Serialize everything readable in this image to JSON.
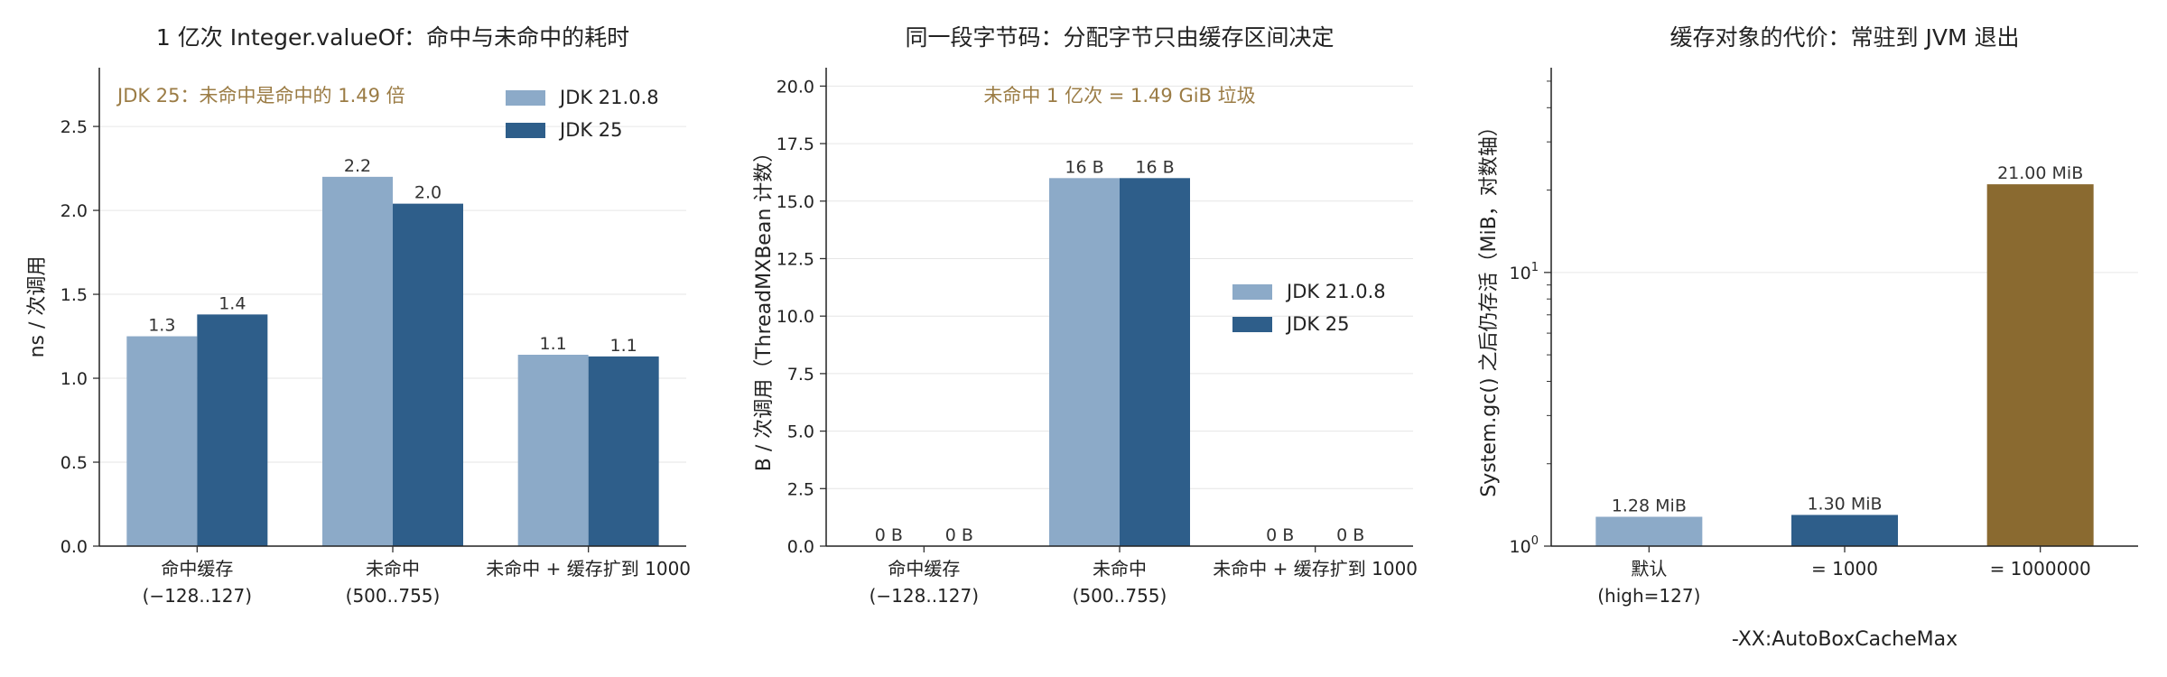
{
  "chart_data": [
    {
      "type": "bar",
      "title": "1 亿次 Integer.valueOf：命中与未命中的耗时",
      "ylabel": "ns / 次调用",
      "xlabel": "",
      "ylim": [
        0,
        2.85
      ],
      "yticks": [
        "0.0",
        "0.5",
        "1.0",
        "1.5",
        "2.0",
        "2.5"
      ],
      "categories": [
        [
          "命中缓存",
          "(−128..127)"
        ],
        [
          "未命中",
          "(500..755)"
        ],
        [
          "未命中 + 缓存扩到 1000"
        ]
      ],
      "series": [
        {
          "name": "JDK 21.0.8",
          "color": "#8caac8",
          "values": [
            1.25,
            2.2,
            1.14
          ],
          "labels": [
            "1.3",
            "2.2",
            "1.1"
          ]
        },
        {
          "name": "JDK 25",
          "color": "#2e5e8a",
          "values": [
            1.38,
            2.04,
            1.13
          ],
          "labels": [
            "1.4",
            "2.0",
            "1.1"
          ]
        }
      ],
      "annotation": {
        "text": "JDK 25：未命中是命中的 1.49 倍",
        "color": "#9b7c45"
      },
      "legend": "top-right",
      "grid": "horizontal"
    },
    {
      "type": "bar",
      "title": "同一段字节码：分配字节只由缓存区间决定",
      "ylabel": "B / 次调用（ThreadMXBean 计数）",
      "xlabel": "",
      "ylim": [
        0,
        20.8
      ],
      "yticks": [
        "0.0",
        "2.5",
        "5.0",
        "7.5",
        "10.0",
        "12.5",
        "15.0",
        "17.5",
        "20.0"
      ],
      "categories": [
        [
          "命中缓存",
          "(−128..127)"
        ],
        [
          "未命中",
          "(500..755)"
        ],
        [
          "未命中 + 缓存扩到 1000"
        ]
      ],
      "series": [
        {
          "name": "JDK 21.0.8",
          "color": "#8caac8",
          "values": [
            0,
            16,
            0
          ],
          "labels": [
            "0 B",
            "16 B",
            "0 B"
          ]
        },
        {
          "name": "JDK 25",
          "color": "#2e5e8a",
          "values": [
            0,
            16,
            0
          ],
          "labels": [
            "0 B",
            "16 B",
            "0 B"
          ]
        }
      ],
      "annotation": {
        "text": "未命中 1 亿次 = 1.49 GiB 垃圾",
        "color": "#9b7c45"
      },
      "legend": "center-right",
      "grid": "horizontal"
    },
    {
      "type": "bar",
      "title": "缓存对象的代价：常驻到 JVM 退出",
      "ylabel": "System.gc() 之后仍存活（MiB，对数轴）",
      "xlabel": "-XX:AutoBoxCacheMax",
      "yscale": "log",
      "ylim": [
        1,
        56
      ],
      "yticks": [
        {
          "base": "10",
          "exp": "0",
          "value": 1
        },
        {
          "base": "10",
          "exp": "1",
          "value": 10
        }
      ],
      "categories": [
        [
          "默认",
          "(high=127)"
        ],
        [
          "= 1000"
        ],
        [
          "= 1000000"
        ]
      ],
      "values": [
        1.28,
        1.3,
        21.0
      ],
      "labels": [
        "1.28 MiB",
        "1.30 MiB",
        "21.00 MiB"
      ],
      "colors": [
        "#8caac8",
        "#2e5e8a",
        "#8a6a30"
      ],
      "grid": "horizontal"
    }
  ]
}
